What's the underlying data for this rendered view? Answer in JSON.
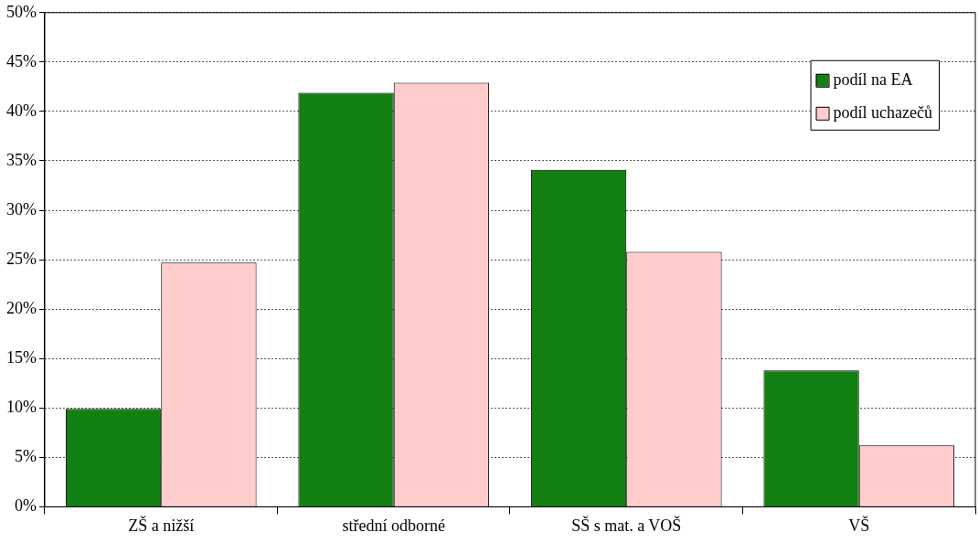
{
  "chart_data": {
    "type": "bar",
    "categories": [
      "ZŠ a nižší",
      "střední odborné",
      "SŠ s mat. a VOŠ",
      "VŠ"
    ],
    "series": [
      {
        "name": "podíl na EA",
        "color": "#138013",
        "values": [
          9.9,
          41.9,
          34.1,
          13.8
        ]
      },
      {
        "name": "podíl uchazečů",
        "color": "#ffcccc",
        "values": [
          24.7,
          42.9,
          25.8,
          6.2
        ]
      }
    ],
    "ylim": [
      0,
      50
    ],
    "yticks": [
      {
        "value": 0,
        "label": "0%"
      },
      {
        "value": 5,
        "label": "5%"
      },
      {
        "value": 10,
        "label": "10%"
      },
      {
        "value": 15,
        "label": "15%"
      },
      {
        "value": 20,
        "label": "20%"
      },
      {
        "value": 25,
        "label": "25%"
      },
      {
        "value": 30,
        "label": "30%"
      },
      {
        "value": 35,
        "label": "35%"
      },
      {
        "value": 40,
        "label": "40%"
      },
      {
        "value": 45,
        "label": "45%"
      },
      {
        "value": 50,
        "label": "50%"
      }
    ],
    "grid": "y",
    "legend": "top right"
  }
}
